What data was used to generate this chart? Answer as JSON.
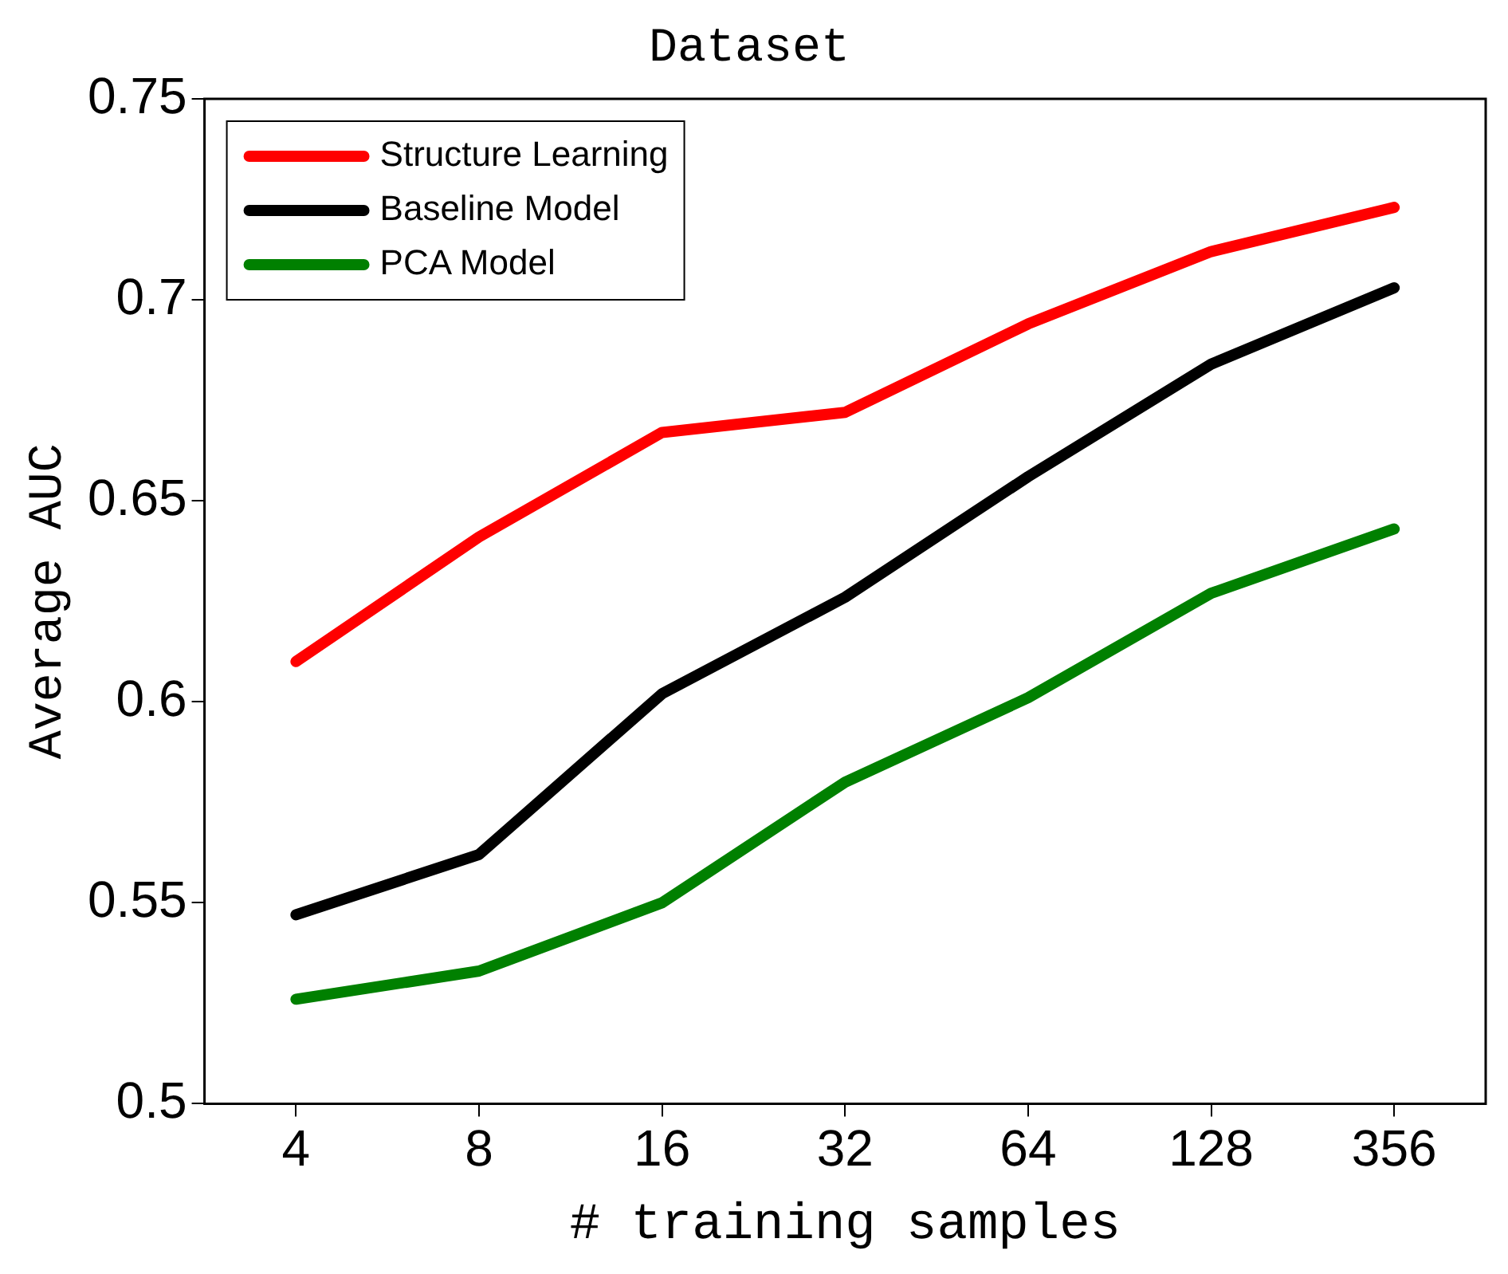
{
  "chart_data": {
    "type": "line",
    "title": "Dataset",
    "xlabel": "# training samples",
    "ylabel": "Average AUC",
    "categories": [
      "4",
      "8",
      "16",
      "32",
      "64",
      "128",
      "356"
    ],
    "series": [
      {
        "name": "Structure Learning",
        "color": "#ff0000",
        "values": [
          0.61,
          0.641,
          0.667,
          0.672,
          0.694,
          0.712,
          0.723
        ]
      },
      {
        "name": "Baseline Model",
        "color": "#000000",
        "values": [
          0.547,
          0.562,
          0.602,
          0.626,
          0.656,
          0.684,
          0.703
        ]
      },
      {
        "name": "PCA Model",
        "color": "#008000",
        "values": [
          0.526,
          0.533,
          0.55,
          0.58,
          0.601,
          0.627,
          0.643
        ]
      }
    ],
    "ylim": [
      0.5,
      0.75
    ],
    "yticks": [
      0.5,
      0.55,
      0.6,
      0.65,
      0.7,
      0.75
    ],
    "grid": false,
    "legend": "top left",
    "marker": "none",
    "line_style": "solid"
  }
}
